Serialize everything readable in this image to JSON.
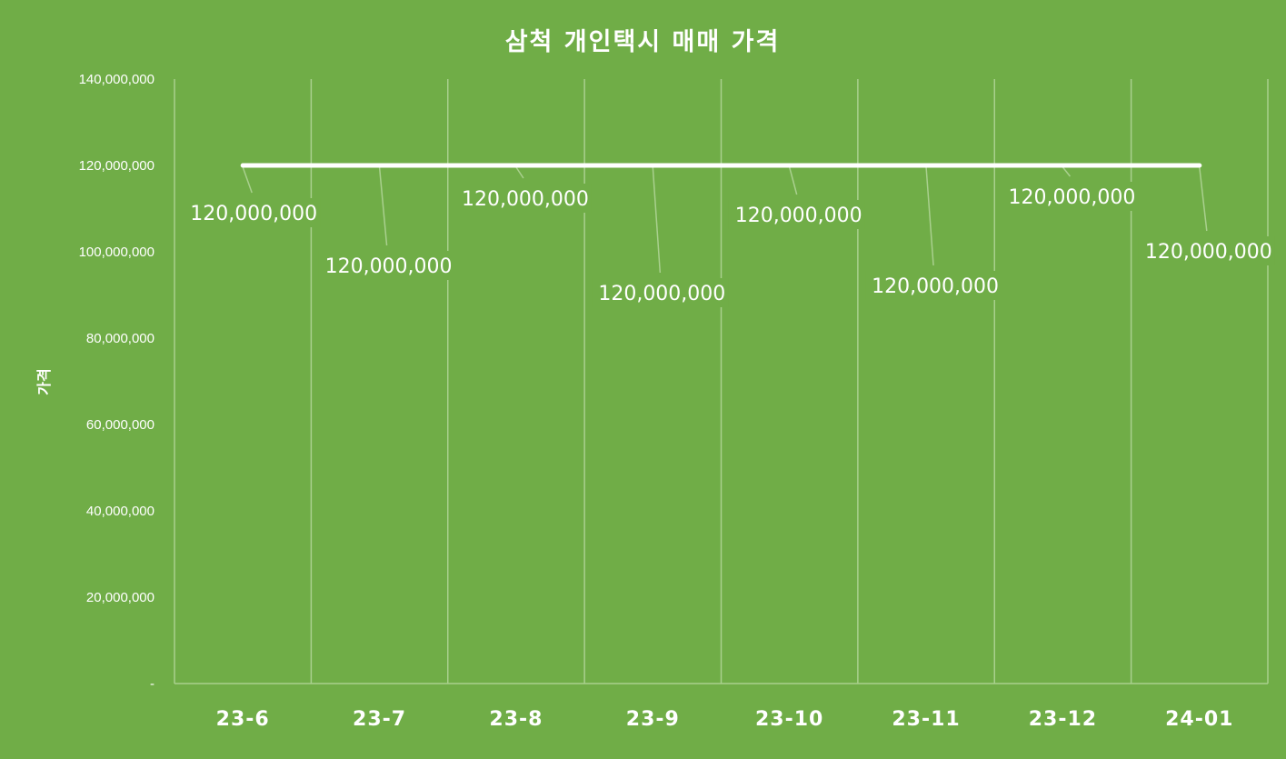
{
  "chart_data": {
    "type": "line",
    "title": "삼척 개인택시 매매 가격",
    "xlabel": "",
    "ylabel": "가격",
    "categories": [
      "23-6",
      "23-7",
      "23-8",
      "23-9",
      "23-10",
      "23-11",
      "23-12",
      "24-01"
    ],
    "series": [
      {
        "values": [
          120000000,
          120000000,
          120000000,
          120000000,
          120000000,
          120000000,
          120000000,
          120000000
        ]
      }
    ],
    "data_labels": [
      "120,000,000",
      "120,000,000",
      "120,000,000",
      "120,000,000",
      "120,000,000",
      "120,000,000",
      "120,000,000",
      "120,000,000"
    ],
    "ylim": [
      0,
      140000000
    ],
    "yticks": [
      0,
      20000000,
      40000000,
      60000000,
      80000000,
      100000000,
      120000000,
      140000000
    ],
    "ytick_labels": [
      "-",
      "20,000,000",
      "40,000,000",
      "60,000,000",
      "80,000,000",
      "100,000,000",
      "120,000,000",
      "140,000,000"
    ],
    "grid": "vertical",
    "legend": "none",
    "colors": {
      "background": "#70ad47",
      "line": "#ffffff",
      "grid": "#a9d08e"
    }
  }
}
